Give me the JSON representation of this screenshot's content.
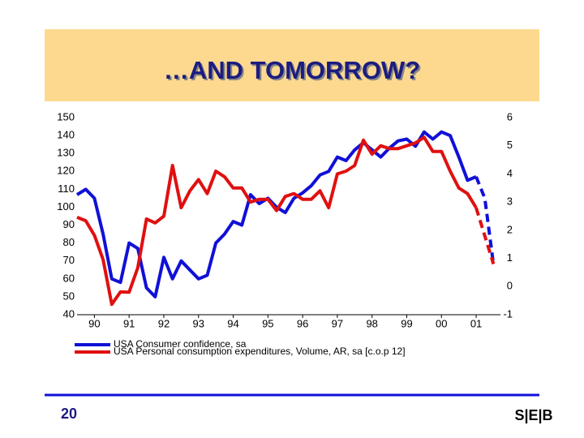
{
  "header": {
    "title": "…AND TOMORROW?"
  },
  "chart_data": {
    "type": "line",
    "x": [
      1989.5,
      1989.75,
      1990,
      1990.25,
      1990.5,
      1990.75,
      1991,
      1991.25,
      1991.5,
      1991.75,
      1992,
      1992.25,
      1992.5,
      1992.75,
      1993,
      1993.25,
      1993.5,
      1993.75,
      1994,
      1994.25,
      1994.5,
      1994.75,
      1995,
      1995.25,
      1995.5,
      1995.75,
      1996,
      1996.25,
      1996.5,
      1996.75,
      1997,
      1997.25,
      1997.5,
      1997.75,
      1998,
      1998.25,
      1998.5,
      1998.75,
      1999,
      1999.25,
      1999.5,
      1999.75,
      2000,
      2000.25,
      2000.5,
      2000.75,
      2001,
      2001.25,
      2001.5
    ],
    "xlim": [
      1989.5,
      2001.7
    ],
    "xticks": [
      {
        "value": 1990,
        "label": "90"
      },
      {
        "value": 1991,
        "label": "91"
      },
      {
        "value": 1992,
        "label": "92"
      },
      {
        "value": 1993,
        "label": "93"
      },
      {
        "value": 1994,
        "label": "94"
      },
      {
        "value": 1995,
        "label": "95"
      },
      {
        "value": 1996,
        "label": "96"
      },
      {
        "value": 1997,
        "label": "97"
      },
      {
        "value": 1998,
        "label": "98"
      },
      {
        "value": 1999,
        "label": "99"
      },
      {
        "value": 2000,
        "label": "00"
      },
      {
        "value": 2001,
        "label": "01"
      }
    ],
    "ylim": [
      40,
      150
    ],
    "yticks": [
      40,
      50,
      60,
      70,
      80,
      90,
      100,
      110,
      120,
      130,
      140,
      150
    ],
    "y2lim": [
      -1,
      6
    ],
    "y2ticks": [
      -1,
      0,
      1,
      2,
      3,
      4,
      5,
      6
    ],
    "series": [
      {
        "name": "USA Consumer confidence, sa",
        "color": "#1010d8",
        "dashed_from": 46,
        "values": [
          107,
          110,
          105,
          85,
          60,
          58,
          80,
          77,
          55,
          50,
          72,
          60,
          70,
          65,
          60,
          62,
          80,
          85,
          92,
          90,
          107,
          102,
          105,
          100,
          97,
          105,
          108,
          112,
          118,
          120,
          128,
          126,
          132,
          136,
          132,
          128,
          133,
          137,
          138,
          134,
          142,
          138,
          142,
          140,
          128,
          115,
          117,
          105,
          68
        ]
      },
      {
        "name": "USA Personal consumption expenditures, Volume, AR, sa   [c.o.p 12]",
        "color": "#e01010",
        "axis": "y2",
        "dashed_from": 46,
        "values": [
          2.46,
          2.34,
          1.82,
          0.96,
          -0.63,
          -0.19,
          -0.2,
          0.67,
          2.4,
          2.26,
          2.5,
          4.3,
          2.8,
          3.4,
          3.8,
          3.3,
          4.1,
          3.9,
          3.5,
          3.5,
          3.0,
          3.1,
          3.1,
          2.7,
          3.2,
          3.3,
          3.1,
          3.1,
          3.4,
          2.8,
          4.0,
          4.1,
          4.3,
          5.2,
          4.7,
          5.0,
          4.9,
          4.9,
          5.0,
          5.1,
          5.3,
          4.8,
          4.8,
          4.1,
          3.5,
          3.3,
          2.8,
          1.8,
          0.8
        ]
      }
    ]
  },
  "footer": {
    "page": "20",
    "logo": "S|E|B"
  }
}
